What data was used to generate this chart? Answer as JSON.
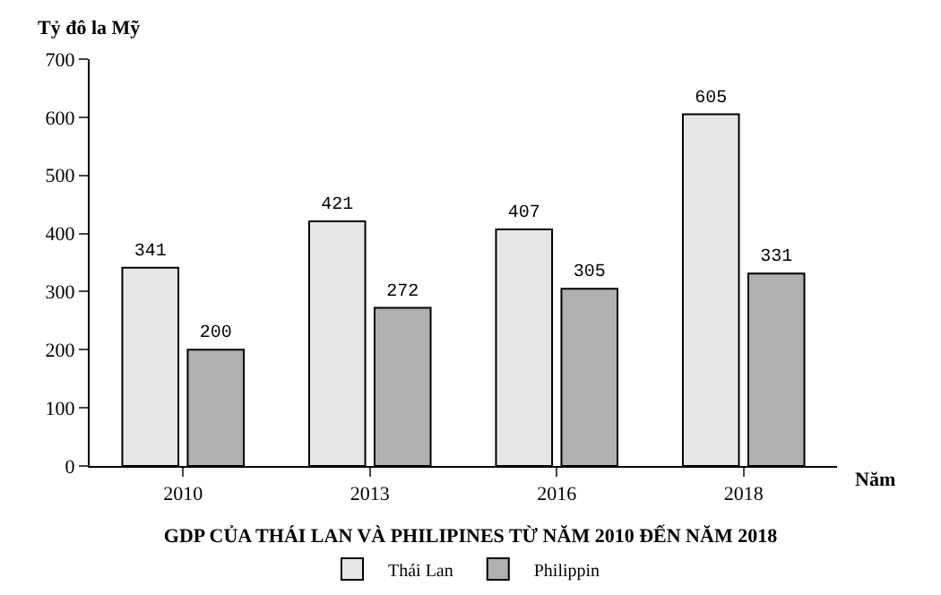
{
  "chart_data": {
    "type": "bar",
    "title": "GDP CỦA THÁI LAN VÀ PHILIPINES TỪ NĂM 2010 ĐẾN NĂM 2018",
    "xlabel": "Năm",
    "ylabel": "Tỷ đô la Mỹ",
    "categories": [
      "2010",
      "2013",
      "2016",
      "2018"
    ],
    "series": [
      {
        "name": "Thái Lan",
        "color": "#e6e6e6",
        "values": [
          341,
          421,
          407,
          605
        ]
      },
      {
        "name": "Philippin",
        "color": "#b0b0b0",
        "values": [
          200,
          272,
          305,
          331
        ]
      }
    ],
    "ylim": [
      0,
      700
    ],
    "yticks": [
      0,
      100,
      200,
      300,
      400,
      500,
      600,
      700
    ],
    "legend": "bottom",
    "data_labels": true
  }
}
